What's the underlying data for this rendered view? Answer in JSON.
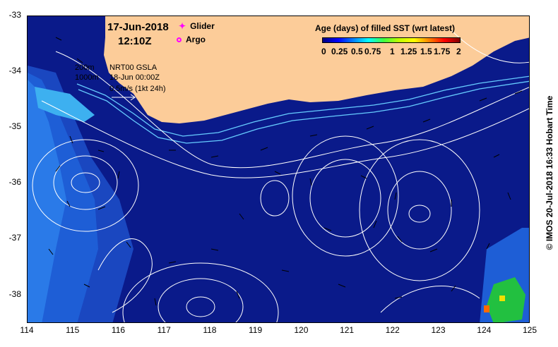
{
  "title": {
    "date": "17-Jun-2018",
    "time": "12:10Z"
  },
  "legend": {
    "glider": "Glider",
    "argo": "Argo"
  },
  "contour_labels": {
    "depth_200": "200m",
    "depth_1000": "1000m"
  },
  "gsla": {
    "product": "NRT00 GSLA",
    "valid": "18-Jun 00:00Z",
    "scale": "0.5m/s (1kt 24h)"
  },
  "colorbar": {
    "title": "Age (days) of filled SST (wrt latest)",
    "ticks": [
      "0",
      "0.25",
      "0.5",
      "0.75",
      "1",
      "1.25",
      "1.5",
      "1.75",
      "2"
    ]
  },
  "axes": {
    "x_ticks": [
      "114",
      "115",
      "116",
      "117",
      "118",
      "119",
      "120",
      "121",
      "122",
      "123",
      "124",
      "125"
    ],
    "y_ticks": [
      "-33",
      "-34",
      "-35",
      "-36",
      "-37",
      "-38"
    ]
  },
  "credit": "© IMOS 20-Jul-2018 16:33 Hobart Time",
  "colors": {
    "ocean": "#0a1a8a",
    "land": "#fccc99",
    "shelf": "#1565d8",
    "nearshore": "#33aaee",
    "contour": "#ffffff",
    "isobath": "#66ccff"
  }
}
